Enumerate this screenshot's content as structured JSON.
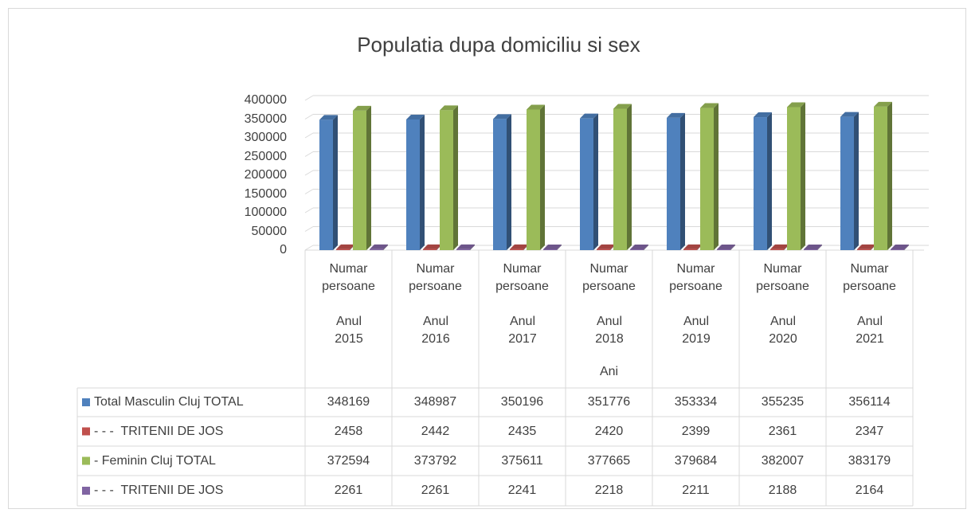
{
  "chart_data": {
    "type": "bar3d",
    "title": "Populatia dupa domiciliu si sex",
    "x_label": "Ani",
    "categories": [
      {
        "measure": "Numar persoane",
        "year": "Anul 2015"
      },
      {
        "measure": "Numar persoane",
        "year": "Anul 2016"
      },
      {
        "measure": "Numar persoane",
        "year": "Anul 2017"
      },
      {
        "measure": "Numar persoane",
        "year": "Anul 2018"
      },
      {
        "measure": "Numar persoane",
        "year": "Anul 2019"
      },
      {
        "measure": "Numar persoane",
        "year": "Anul 2020"
      },
      {
        "measure": "Numar persoane",
        "year": "Anul 2021"
      }
    ],
    "series": [
      {
        "name": "Total Masculin Cluj TOTAL",
        "color": "#4f81bd",
        "values": [
          348169,
          348987,
          350196,
          351776,
          353334,
          355235,
          356114
        ]
      },
      {
        "name": "- - -  TRITENII DE JOS",
        "color": "#c0504d",
        "values": [
          2458,
          2442,
          2435,
          2420,
          2399,
          2361,
          2347
        ]
      },
      {
        "name": "- Feminin Cluj TOTAL",
        "color": "#9bbb59",
        "values": [
          372594,
          373792,
          375611,
          377665,
          379684,
          382007,
          383179
        ]
      },
      {
        "name": "- - -  TRITENII DE JOS",
        "color": "#8064a2",
        "values": [
          2261,
          2261,
          2241,
          2218,
          2211,
          2188,
          2164
        ]
      }
    ],
    "ylim": [
      0,
      400000
    ],
    "yticks": [
      0,
      50000,
      100000,
      150000,
      200000,
      250000,
      300000,
      350000,
      400000
    ],
    "grid": true,
    "data_table": true
  }
}
